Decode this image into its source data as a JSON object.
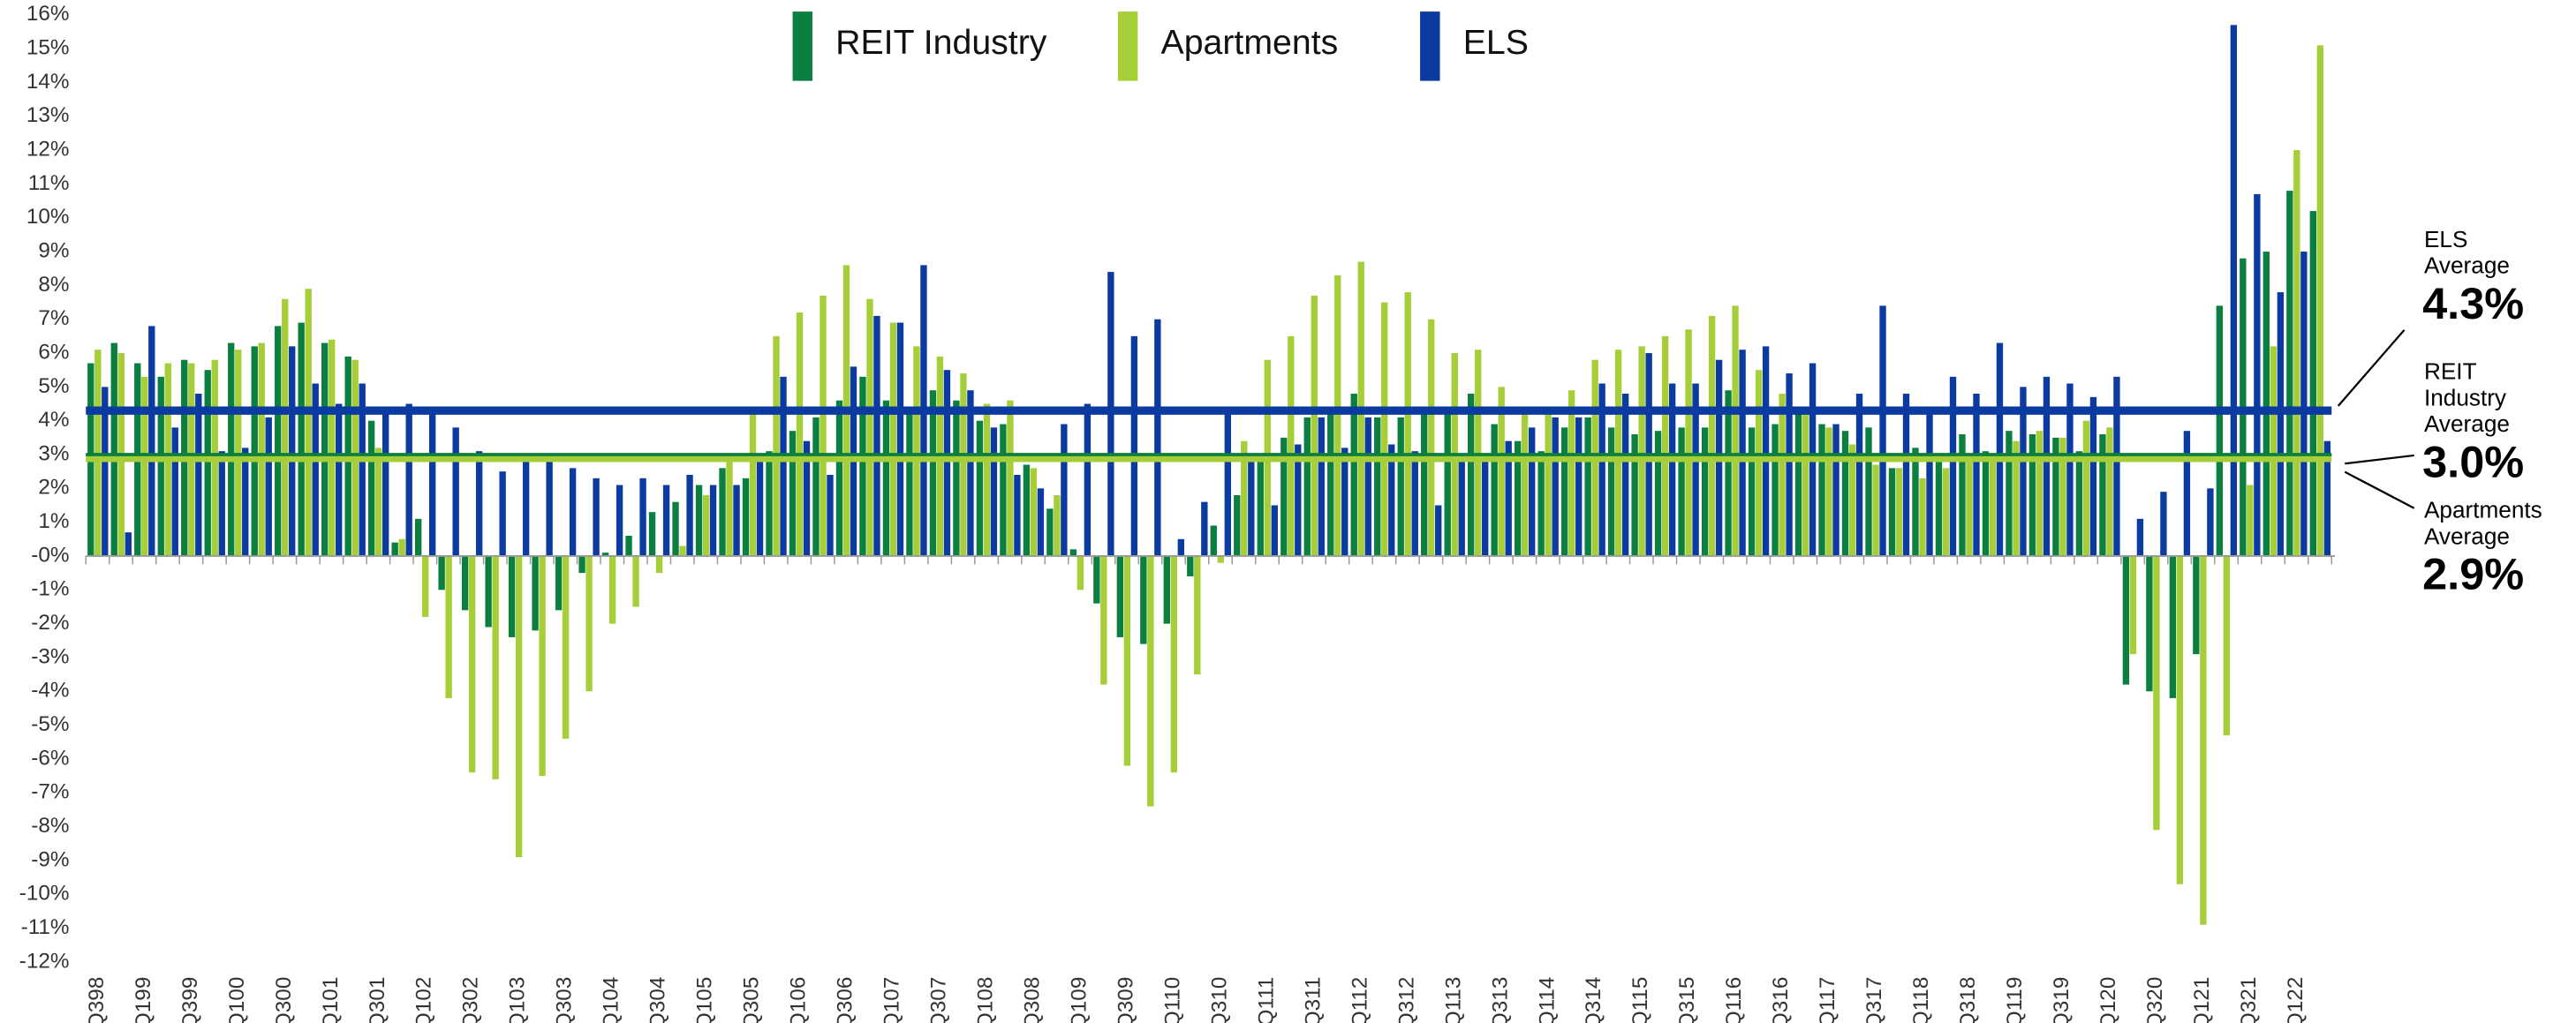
{
  "chart_data": {
    "type": "bar",
    "categories": [
      "Q398",
      null,
      "Q199",
      null,
      "Q399",
      null,
      "Q100",
      null,
      "Q300",
      null,
      "Q101",
      null,
      "Q301",
      null,
      "Q102",
      null,
      "Q302",
      null,
      "Q103",
      null,
      "Q303",
      null,
      "Q104",
      null,
      "Q304",
      null,
      "Q105",
      null,
      "Q305",
      null,
      "Q106",
      null,
      "Q306",
      null,
      "Q107",
      null,
      "Q307",
      null,
      "Q108",
      null,
      "Q308",
      null,
      "Q109",
      null,
      "Q309",
      null,
      "Q110",
      null,
      "Q310",
      null,
      "Q111",
      null,
      "Q311",
      null,
      "Q112",
      null,
      "Q312",
      null,
      "Q113",
      null,
      "Q313",
      null,
      "Q114",
      null,
      "Q314",
      null,
      "Q115",
      null,
      "Q315",
      null,
      "Q116",
      null,
      "Q316",
      null,
      "Q117",
      null,
      "Q317",
      null,
      "Q118",
      null,
      "Q318",
      null,
      "Q119",
      null,
      "Q319",
      null,
      "Q120",
      null,
      "Q320",
      null,
      "Q121",
      null,
      "Q321",
      null,
      "Q122",
      null
    ],
    "series": [
      {
        "name": "REIT Industry",
        "color": "#0b7f3f",
        "values": [
          5.7,
          6.3,
          5.7,
          5.3,
          5.8,
          5.5,
          6.3,
          6.2,
          6.8,
          6.9,
          6.3,
          5.9,
          4.0,
          0.4,
          1.1,
          -1.0,
          -1.6,
          -2.1,
          -2.4,
          -2.2,
          -1.6,
          -0.5,
          0.1,
          0.6,
          1.3,
          1.6,
          2.1,
          2.6,
          2.3,
          3.1,
          3.7,
          4.1,
          4.6,
          5.3,
          4.6,
          4.3,
          4.9,
          4.6,
          4.0,
          3.9,
          2.7,
          1.4,
          0.2,
          -1.4,
          -2.4,
          -2.6,
          -2.0,
          -0.6,
          0.9,
          1.8,
          2.8,
          3.5,
          4.1,
          4.2,
          4.8,
          4.1,
          4.1,
          4.2,
          4.2,
          4.8,
          3.9,
          3.4,
          3.1,
          3.8,
          4.1,
          3.8,
          3.6,
          3.7,
          3.8,
          3.8,
          4.9,
          3.8,
          3.9,
          4.3,
          3.9,
          3.7,
          3.8,
          2.6,
          3.2,
          3.0,
          3.6,
          3.1,
          3.7,
          3.6,
          3.5,
          3.1,
          3.6,
          -3.8,
          -4.0,
          -4.2,
          -2.9,
          7.4,
          8.8,
          9.0,
          10.8,
          10.2
        ]
      },
      {
        "name": "Apartments",
        "color": "#a6ce39",
        "values": [
          6.1,
          6.0,
          5.3,
          5.7,
          5.7,
          5.8,
          6.1,
          6.3,
          7.6,
          7.9,
          6.4,
          5.8,
          3.2,
          0.5,
          -1.8,
          -4.2,
          -6.4,
          -6.6,
          -8.9,
          -6.5,
          -5.4,
          -4.0,
          -2.0,
          -1.5,
          -0.5,
          0.3,
          1.8,
          3.0,
          4.2,
          6.5,
          7.2,
          7.7,
          8.6,
          7.6,
          6.9,
          6.2,
          5.9,
          5.4,
          4.5,
          4.6,
          2.6,
          1.8,
          -1.0,
          -3.8,
          -6.2,
          -7.4,
          -6.4,
          -3.5,
          -0.2,
          3.4,
          5.8,
          6.5,
          7.7,
          8.3,
          8.7,
          7.5,
          7.8,
          7.0,
          6.0,
          6.1,
          5.0,
          4.2,
          4.2,
          4.9,
          5.8,
          6.1,
          6.2,
          6.5,
          6.7,
          7.1,
          7.4,
          5.5,
          4.8,
          4.2,
          3.8,
          3.3,
          2.7,
          2.6,
          2.3,
          2.6,
          3.0,
          3.0,
          3.4,
          3.7,
          3.5,
          4.0,
          3.8,
          -2.9,
          -8.1,
          -9.7,
          -10.9,
          -5.3,
          2.1,
          6.2,
          12.0,
          15.1
        ]
      },
      {
        "name": "ELS",
        "color": "#0b3aa1",
        "values": [
          5.0,
          0.7,
          6.8,
          3.8,
          4.8,
          3.1,
          3.2,
          4.1,
          6.2,
          5.1,
          4.5,
          5.1,
          4.3,
          4.5,
          4.3,
          3.8,
          3.1,
          2.5,
          2.9,
          2.8,
          2.6,
          2.3,
          2.1,
          2.3,
          2.1,
          2.4,
          2.1,
          2.1,
          2.9,
          5.3,
          3.4,
          2.4,
          5.6,
          7.1,
          6.9,
          8.6,
          5.5,
          4.9,
          3.8,
          2.4,
          2.0,
          3.9,
          4.5,
          8.4,
          6.5,
          7.0,
          0.5,
          1.6,
          4.2,
          2.9,
          1.5,
          3.3,
          4.1,
          3.2,
          4.1,
          3.3,
          3.1,
          1.5,
          3.0,
          3.0,
          3.4,
          3.8,
          4.1,
          4.1,
          5.1,
          4.8,
          6.0,
          5.1,
          5.1,
          5.8,
          6.1,
          6.2,
          5.4,
          5.7,
          3.9,
          4.8,
          7.4,
          4.8,
          4.4,
          5.3,
          4.8,
          6.3,
          5.0,
          5.3,
          5.1,
          4.7,
          5.3,
          1.1,
          1.9,
          3.7,
          2.0,
          15.7,
          10.7,
          7.8,
          9.0,
          3.4
        ]
      }
    ],
    "ylim": [
      -12,
      16
    ],
    "yticks": [
      {
        "value": 16,
        "label": "16%"
      },
      {
        "value": 15,
        "label": "15%"
      },
      {
        "value": 14,
        "label": "14%"
      },
      {
        "value": 13,
        "label": "13%"
      },
      {
        "value": 12,
        "label": "12%"
      },
      {
        "value": 11,
        "label": "11%"
      },
      {
        "value": 10,
        "label": "10%"
      },
      {
        "value": 9,
        "label": "9%"
      },
      {
        "value": 8,
        "label": "8%"
      },
      {
        "value": 7,
        "label": "7%"
      },
      {
        "value": 6,
        "label": "6%"
      },
      {
        "value": 5,
        "label": "5%"
      },
      {
        "value": 4,
        "label": "4%"
      },
      {
        "value": 3,
        "label": "3%"
      },
      {
        "value": 2,
        "label": "2%"
      },
      {
        "value": 1,
        "label": "1%"
      },
      {
        "value": 0,
        "label": "-0%"
      },
      {
        "value": -1,
        "label": "-1%"
      },
      {
        "value": -2,
        "label": "-2%"
      },
      {
        "value": -3,
        "label": "-3%"
      },
      {
        "value": -4,
        "label": "-4%"
      },
      {
        "value": -5,
        "label": "-5%"
      },
      {
        "value": -6,
        "label": "-6%"
      },
      {
        "value": -7,
        "label": "-7%"
      },
      {
        "value": -8,
        "label": "-8%"
      },
      {
        "value": -9,
        "label": "-9%"
      },
      {
        "value": -10,
        "label": "-10%"
      },
      {
        "value": -11,
        "label": "-11%"
      },
      {
        "value": -12,
        "label": "-12%"
      }
    ],
    "grid": false,
    "legend": "top",
    "averages": [
      {
        "name": [
          "ELS",
          "Average"
        ],
        "value": 4.3,
        "label": "4.3%",
        "color": "#0b3aa1"
      },
      {
        "name": [
          "REIT",
          "Industry",
          "Average"
        ],
        "value": 3.0,
        "label": "3.0%",
        "color": "#0b7f3f"
      },
      {
        "name": [
          "Apartments",
          "Average"
        ],
        "value": 2.9,
        "label": "2.9%",
        "color": "#a6ce39"
      }
    ]
  }
}
